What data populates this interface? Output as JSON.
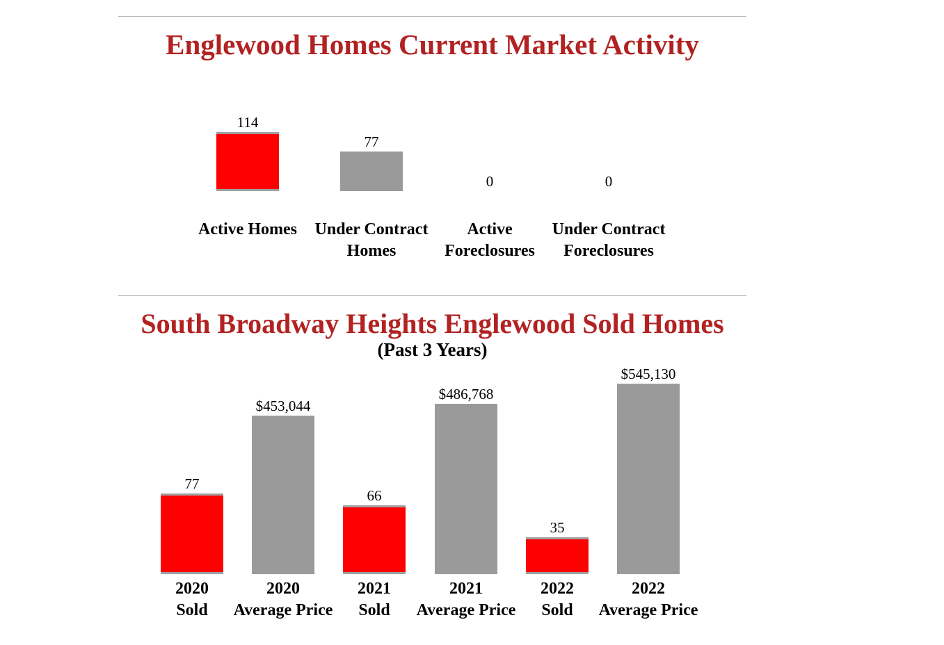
{
  "colors": {
    "title": "#b22222",
    "highlight": "#ff0000",
    "neutral": "#9a9a9a"
  },
  "chart_data": [
    {
      "type": "bar",
      "title": "Englewood Homes Current Market Activity",
      "categories": [
        "Active Homes",
        "Under Contract Homes",
        "Active Foreclosures",
        "Under Contract Foreclosures"
      ],
      "values": [
        114,
        77,
        0,
        0
      ],
      "value_labels": [
        "114",
        "77",
        "0",
        "0"
      ],
      "bar_colors": [
        "#ff0000",
        "#9a9a9a",
        "#ff0000",
        "#9a9a9a"
      ]
    },
    {
      "type": "bar",
      "title": "South Broadway Heights Englewood Sold Homes",
      "subtitle": "(Past 3 Years)",
      "categories": [
        "2020\nSold",
        "2020\nAverage Price",
        "2021\nSold",
        "2021\nAverage Price",
        "2022\nSold",
        "2022\nAverage Price"
      ],
      "values": [
        77,
        453044,
        66,
        486768,
        35,
        545130
      ],
      "value_labels": [
        "77",
        "$453,044",
        "66",
        "$486,768",
        "35",
        "$545,130"
      ],
      "bar_colors": [
        "#ff0000",
        "#9a9a9a",
        "#ff0000",
        "#9a9a9a",
        "#ff0000",
        "#9a9a9a"
      ]
    }
  ]
}
